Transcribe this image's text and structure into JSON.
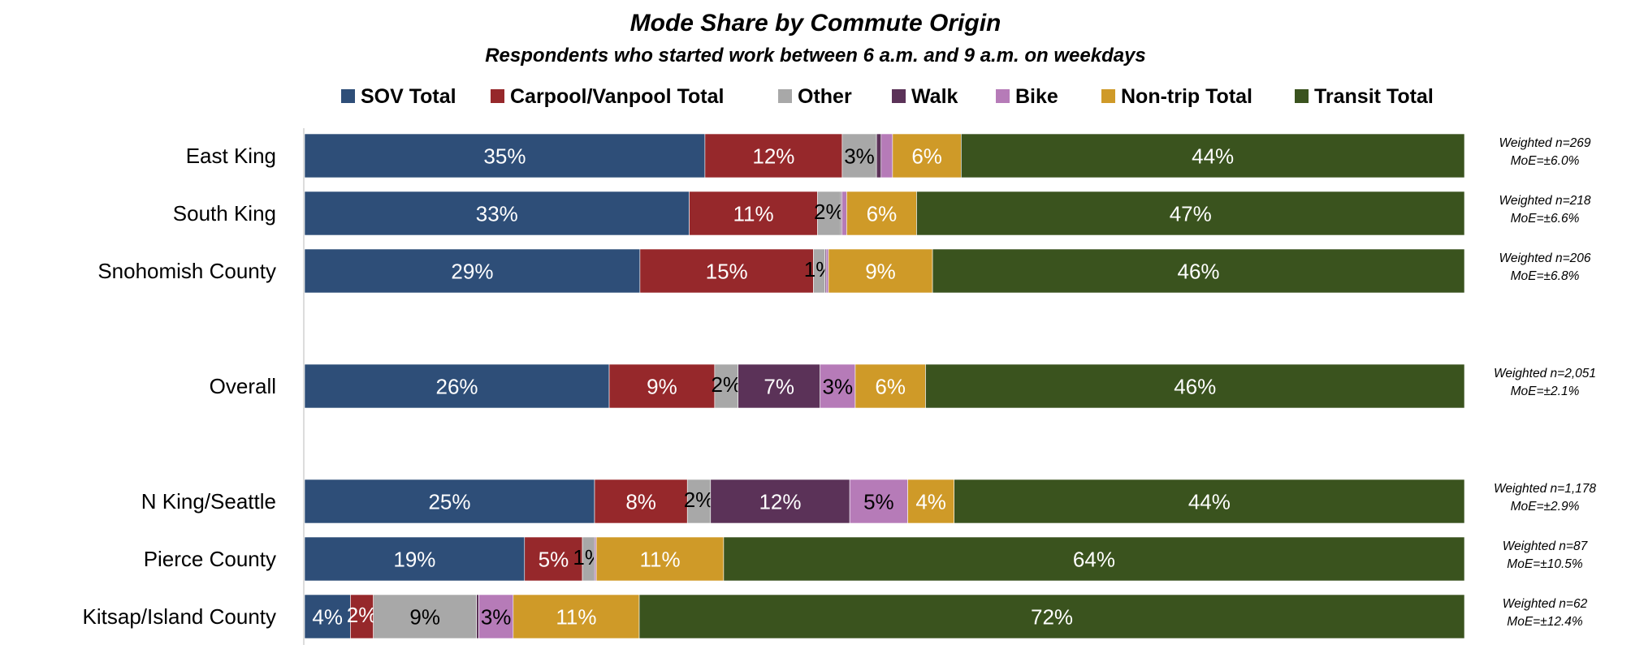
{
  "chart_data": {
    "type": "bar",
    "orientation": "horizontal",
    "stacked": true,
    "title": "Mode Share by Commute Origin",
    "subtitle": "Respondents who started work between 6 a.m. and 9 a.m. on weekdays",
    "legend_position": "top",
    "xlim": [
      0,
      100
    ],
    "unit": "%",
    "series": [
      {
        "key": "sov",
        "name": "SOV Total",
        "color": "#2e4e78",
        "label_color": "#ffffff"
      },
      {
        "key": "carpool",
        "name": "Carpool/Vanpool Total",
        "color": "#96282b",
        "label_color": "#ffffff"
      },
      {
        "key": "other",
        "name": "Other",
        "color": "#a8a8a8",
        "label_color": "#000000"
      },
      {
        "key": "walk",
        "name": "Walk",
        "color": "#5b3258",
        "label_color": "#ffffff"
      },
      {
        "key": "bike",
        "name": "Bike",
        "color": "#b67bb8",
        "label_color": "#000000"
      },
      {
        "key": "nontrip",
        "name": "Non-trip Total",
        "color": "#cf9a28",
        "label_color": "#ffffff"
      },
      {
        "key": "transit",
        "name": "Transit Total",
        "color": "#3a531e",
        "label_color": "#ffffff"
      }
    ],
    "categories": [
      {
        "name": "East King",
        "weighted_n": "Weighted n=269",
        "moe": "MoE=±6.0%",
        "values": [
          35,
          12,
          3,
          0.4,
          1,
          6,
          44
        ],
        "labels": [
          "35%",
          "12%",
          "3%",
          "",
          "",
          "6%",
          "44%"
        ]
      },
      {
        "name": "South King",
        "weighted_n": "Weighted n=218",
        "moe": "MoE=±6.6%",
        "values": [
          33,
          11,
          2,
          0.1,
          0.4,
          6,
          47
        ],
        "labels": [
          "33%",
          "11%",
          "2%",
          "",
          "",
          "6%",
          "47%"
        ]
      },
      {
        "name": "Snohomish County",
        "weighted_n": "Weighted n=206",
        "moe": "MoE=±6.8%",
        "values": [
          29,
          15,
          1,
          0.1,
          0.2,
          9,
          46
        ],
        "labels": [
          "29%",
          "15%",
          "1%",
          "",
          "",
          "9%",
          "46%"
        ]
      },
      {
        "name": "Overall",
        "weighted_n": "Weighted n=2,051",
        "moe": "MoE=±2.1%",
        "values": [
          26,
          9,
          2,
          7,
          3,
          6,
          46
        ],
        "labels": [
          "26%",
          "9%",
          "2%",
          "7%",
          "3%",
          "6%",
          "46%"
        ]
      },
      {
        "name": "N King/Seattle",
        "weighted_n": "Weighted n=1,178",
        "moe": "MoE=±2.9%",
        "values": [
          25,
          8,
          2,
          12,
          5,
          4,
          44
        ],
        "labels": [
          "25%",
          "8%",
          "2%",
          "12%",
          "5%",
          "4%",
          "44%"
        ]
      },
      {
        "name": "Pierce County",
        "weighted_n": "Weighted n=87",
        "moe": "MoE=±10.5%",
        "values": [
          19,
          5,
          1,
          0.1,
          0.1,
          11,
          64
        ],
        "labels": [
          "19%",
          "5%",
          "1%",
          "",
          "",
          "11%",
          "64%"
        ]
      },
      {
        "name": "Kitsap/Island County",
        "weighted_n": "Weighted n=62",
        "moe": "MoE=±12.4%",
        "values": [
          4,
          2,
          9,
          0.2,
          3,
          11,
          72
        ],
        "labels": [
          "4%",
          "2%",
          "9%",
          "",
          "3%",
          "11%",
          "72%"
        ]
      }
    ]
  }
}
